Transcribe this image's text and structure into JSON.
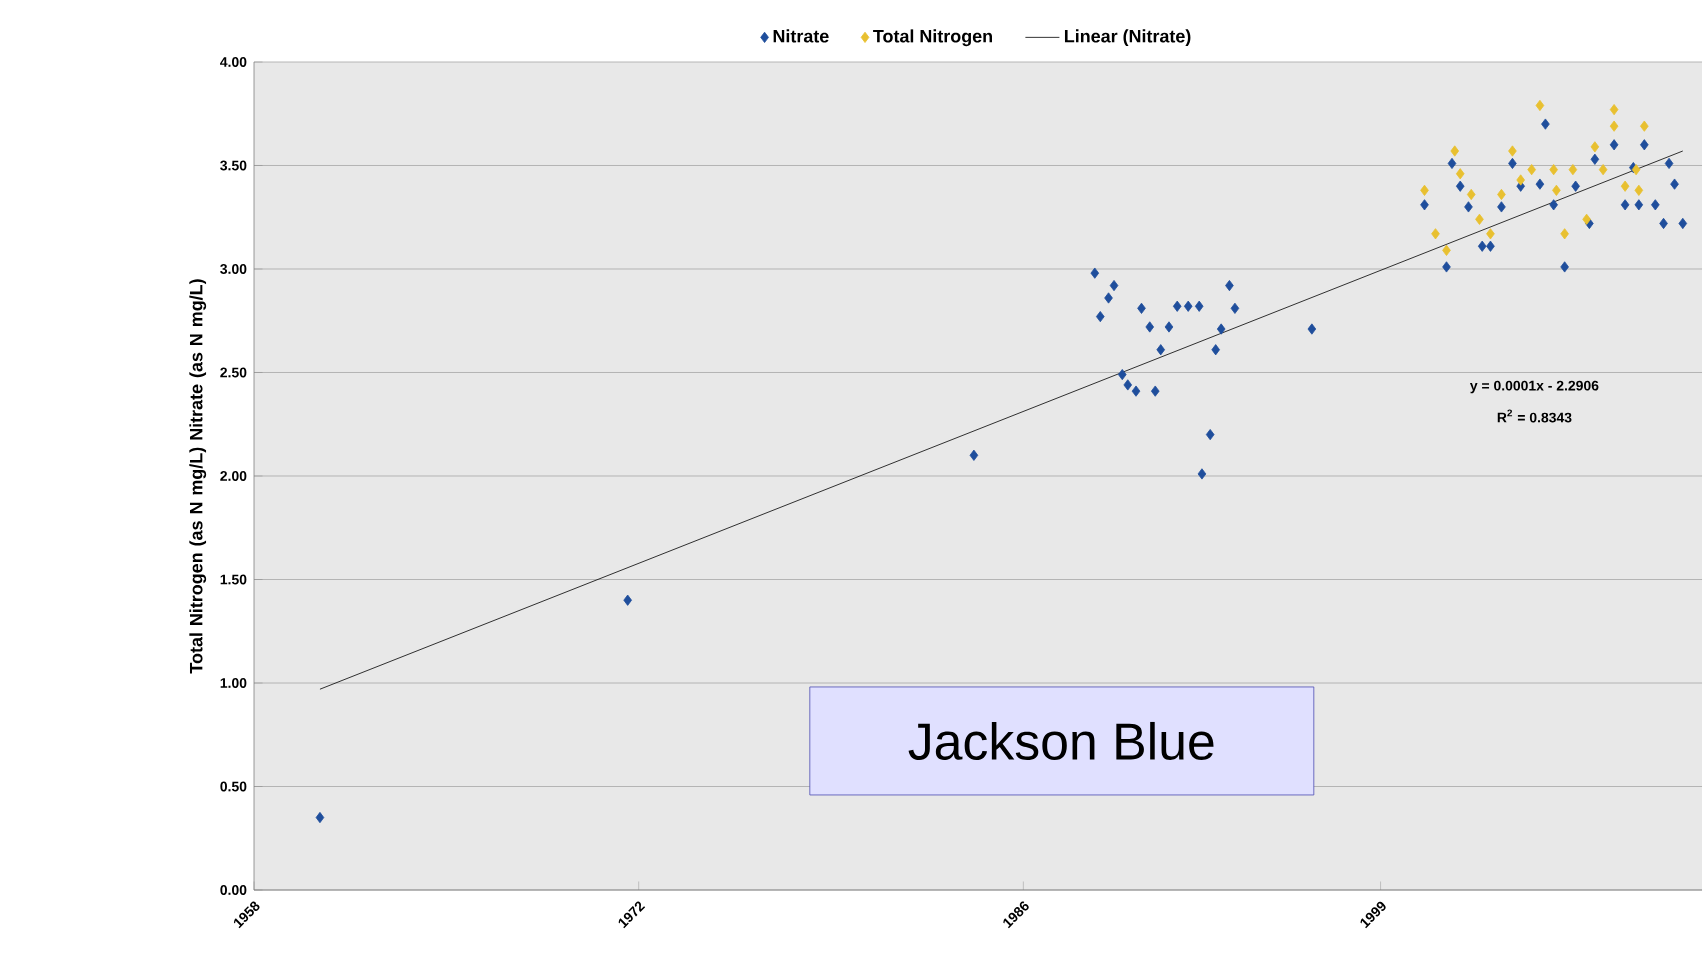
{
  "chart_data": {
    "type": "scatter",
    "ylabel": "Total Nitrogen (as N mg/L) Nitrate (as N mg/L)",
    "xlim": [
      1958,
      2010.7
    ],
    "ylim": [
      0,
      4
    ],
    "xticks": [
      1958,
      1972,
      1986,
      1999
    ],
    "yticks": [
      {
        "value": 0,
        "label": "0.00"
      },
      {
        "value": 0.5,
        "label": "0.50"
      },
      {
        "value": 1,
        "label": "1.00"
      },
      {
        "value": 1.5,
        "label": "1.50"
      },
      {
        "value": 2,
        "label": "2.00"
      },
      {
        "value": 2.5,
        "label": "2.50"
      },
      {
        "value": 3,
        "label": "3.00"
      },
      {
        "value": 3.5,
        "label": "3.50"
      },
      {
        "value": 4,
        "label": "4.00"
      }
    ],
    "grid": "y",
    "legend": "top",
    "marker": "diamond",
    "series": [
      {
        "name": "Nitrate",
        "color": "#1f4e9c",
        "x": [
          1960.4,
          1971.6,
          1984.2,
          1988.6,
          1989.3,
          1989.1,
          1988.8,
          1990.3,
          1990.6,
          1991.3,
          1991.6,
          1992.0,
          1992.4,
          1991.0,
          1993.5,
          1993.7,
          1993.2,
          1993.0,
          1996.5,
          1989.6,
          1989.8,
          1990.1,
          1990.8,
          1992.8,
          1992.5,
          2000.6,
          2001.4,
          2002.7,
          2003.0,
          2001.6,
          2001.9,
          2002.2,
          2003.4,
          2003.8,
          2004.1,
          2005.0,
          2004.8,
          2005.7,
          2005.3,
          2006.1,
          2006.6,
          2006.8,
          2007.5,
          2007.9,
          2008.2,
          2008.6,
          2008.4,
          2009.0,
          2009.3,
          2009.5,
          2009.7,
          2010.0
        ],
        "values": [
          0.35,
          1.4,
          2.1,
          2.98,
          2.92,
          2.86,
          2.77,
          2.81,
          2.72,
          2.72,
          2.82,
          2.82,
          2.82,
          2.61,
          2.92,
          2.81,
          2.71,
          2.61,
          2.71,
          2.49,
          2.44,
          2.41,
          2.41,
          2.2,
          2.01,
          3.31,
          3.01,
          3.11,
          3.11,
          3.51,
          3.4,
          3.3,
          3.3,
          3.51,
          3.4,
          3.7,
          3.41,
          3.01,
          3.31,
          3.4,
          3.22,
          3.53,
          3.6,
          3.31,
          3.49,
          3.6,
          3.31,
          3.31,
          3.22,
          3.51,
          3.41,
          3.22
        ]
      },
      {
        "name": "Total Nitrogen",
        "color": "#e8c030",
        "x": [
          2000.6,
          2001.0,
          2001.4,
          2001.7,
          2001.9,
          2002.3,
          2002.6,
          2003.0,
          2003.4,
          2003.8,
          2004.1,
          2004.5,
          2004.8,
          2005.3,
          2005.4,
          2005.7,
          2006.0,
          2006.5,
          2006.8,
          2007.1,
          2007.5,
          2007.5,
          2007.9,
          2008.3,
          2008.4,
          2008.6
        ],
        "values": [
          3.38,
          3.17,
          3.09,
          3.57,
          3.46,
          3.36,
          3.24,
          3.17,
          3.36,
          3.57,
          3.43,
          3.48,
          3.79,
          3.48,
          3.38,
          3.17,
          3.48,
          3.24,
          3.59,
          3.48,
          3.77,
          3.69,
          3.4,
          3.48,
          3.38,
          3.69
        ]
      },
      {
        "name": "Linear (Nitrate)",
        "type": "line",
        "marker": "none",
        "color": "#000000",
        "x": [
          1960.4,
          2010.0
        ],
        "values": [
          0.97,
          3.57
        ]
      }
    ],
    "annotations": [
      "y = 0.0001x - 2.2906",
      "R$^{2}$ = 0.8343",
      "Jackson Blue"
    ]
  }
}
